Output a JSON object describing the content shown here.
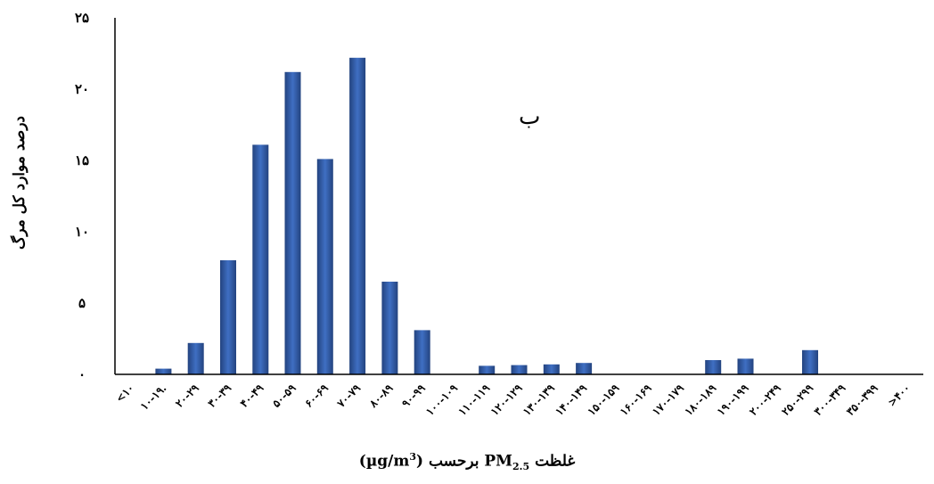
{
  "chart_data": {
    "type": "bar",
    "title": "",
    "xlabel_parts": [
      "(µg/m",
      "3",
      ") برحسب PM",
      "2.5",
      " غلظت"
    ],
    "ylabel": "درصد موارد کل مرگ",
    "annotation": "ب",
    "ylim": [
      0,
      25
    ],
    "yticks": [
      0,
      5,
      10,
      15,
      20,
      25
    ],
    "ytick_labels": [
      "۰",
      "۵",
      "۱۰",
      "۱۵",
      "۲۰",
      "۲۵"
    ],
    "grid": false,
    "legend": "none",
    "categories": [
      "<۱۰",
      "۱۰-۱۹.",
      "۲۰-۲۹",
      "۳۰-۳۹",
      "۴۰-۴۹",
      "۵۰-۵۹",
      "۶۰-۶۹",
      "۷۰-۷۹",
      "۸۰-۸۹",
      "۹۰-۹۹",
      "۱۰۰-۱۰۹",
      "۱۱۰-۱۱۹",
      "۱۲۰-۱۲۹",
      "۱۳۰-۱۳۹",
      "۱۴۰-۱۴۹",
      "۱۵۰-۱۵۹",
      "۱۶۰-۱۶۹",
      "۱۷۰-۱۷۹",
      "۱۸۰-۱۸۹",
      "۱۹۰-۱۹۹",
      "۲۰۰-۲۴۹",
      "۲۵۰-۲۹۹",
      "۳۰۰-۳۴۹",
      "۳۵۰-۳۹۹",
      ">۴۰۰"
    ],
    "values": [
      0,
      0.4,
      2.2,
      8.0,
      16.1,
      21.2,
      15.1,
      22.2,
      6.5,
      3.1,
      0,
      0.6,
      0.65,
      0.7,
      0.8,
      0,
      0,
      0,
      1.0,
      1.1,
      0,
      1.7,
      0,
      0,
      0
    ],
    "colors": {
      "bar_center": "#3f6fc3",
      "bar_edge": "#23437f",
      "axis": "#000000"
    }
  }
}
